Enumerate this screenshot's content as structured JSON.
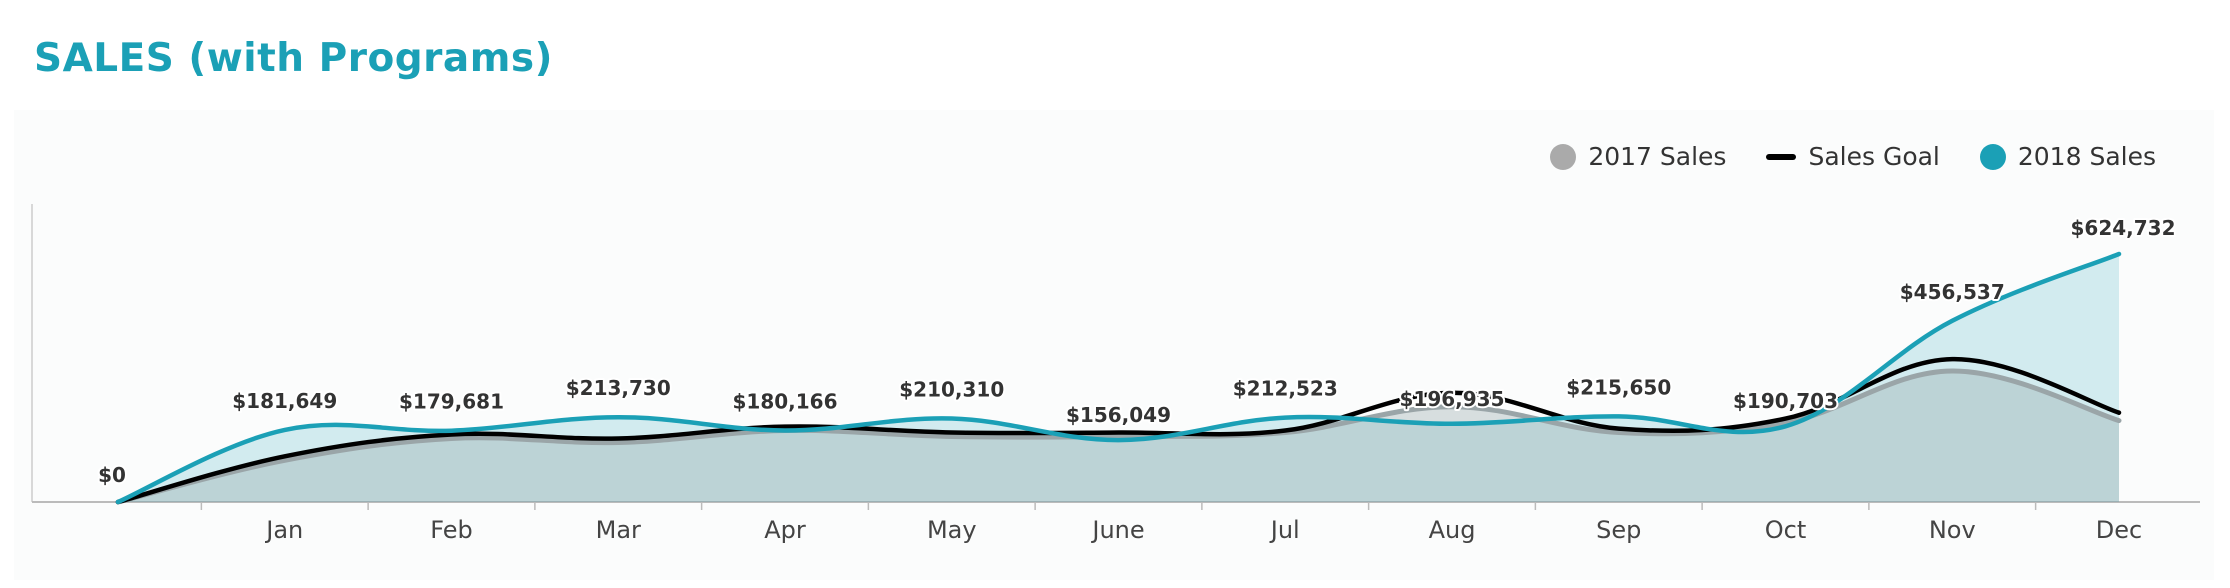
{
  "title": "SALES (with Programs)",
  "legend": {
    "items": [
      {
        "label": "2017 Sales",
        "shape": "dot",
        "color": "#aaaaaa"
      },
      {
        "label": "Sales Goal",
        "shape": "line",
        "color": "#000000"
      },
      {
        "label": "2018 Sales",
        "shape": "dot",
        "color": "#1ba0b6"
      }
    ],
    "placement": "top-right"
  },
  "chart_data": {
    "type": "area",
    "title": "SALES (with Programs)",
    "categories": [
      "",
      "Jan",
      "Feb",
      "Mar",
      "Apr",
      "May",
      "June",
      "Jul",
      "Aug",
      "Sep",
      "Oct",
      "Nov",
      "Dec"
    ],
    "ylim": [
      0,
      700000
    ],
    "grid": false,
    "legend_position": "top-right",
    "series": [
      {
        "name": "2017 Sales",
        "color": "#9aa5a8",
        "values": [
          0,
          105000,
          160000,
          150000,
          180000,
          165000,
          165000,
          175000,
          240000,
          175000,
          200000,
          330000,
          205000
        ]
      },
      {
        "name": "Sales Goal",
        "color": "#000000",
        "values": [
          0,
          115000,
          170000,
          160000,
          190000,
          175000,
          175000,
          180000,
          275000,
          185000,
          210000,
          360000,
          225000
        ]
      },
      {
        "name": "2018 Sales",
        "color": "#1ba0b6",
        "values": [
          0,
          181649,
          179681,
          213730,
          180166,
          210310,
          156049,
          212523,
          196935,
          215650,
          190703,
          456537,
          624732
        ],
        "data_labels": [
          "$0",
          "$181,649",
          "$179,681",
          "$213,730",
          "$180,166",
          "$210,310",
          "$156,049",
          "$212,523",
          "$196,935",
          "$215,650",
          "$190,703",
          "$456,537",
          "$624,732"
        ]
      }
    ]
  }
}
